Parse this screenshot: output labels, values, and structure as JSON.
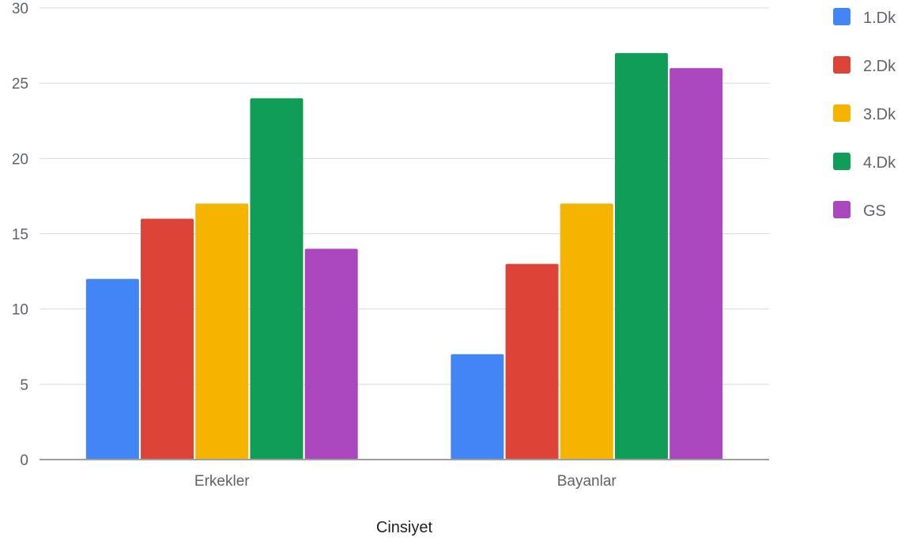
{
  "chart_data": {
    "type": "bar",
    "xlabel": "Cinsiyet",
    "ylabel": "",
    "ylim": [
      0,
      30
    ],
    "yticks": [
      0,
      5,
      10,
      15,
      20,
      25,
      30
    ],
    "grid": true,
    "legend_position": "right",
    "categories": [
      "Erkekler",
      "Bayanlar"
    ],
    "series": [
      {
        "name": "1.Dk",
        "color": "#4285f4",
        "values": [
          12,
          7
        ]
      },
      {
        "name": "2.Dk",
        "color": "#db4437",
        "values": [
          16,
          13
        ]
      },
      {
        "name": "3.Dk",
        "color": "#f4b400",
        "values": [
          17,
          17
        ]
      },
      {
        "name": "4.Dk",
        "color": "#0f9d58",
        "values": [
          24,
          27
        ]
      },
      {
        "name": "GS",
        "color": "#ab47bc",
        "values": [
          14,
          26
        ]
      }
    ]
  }
}
